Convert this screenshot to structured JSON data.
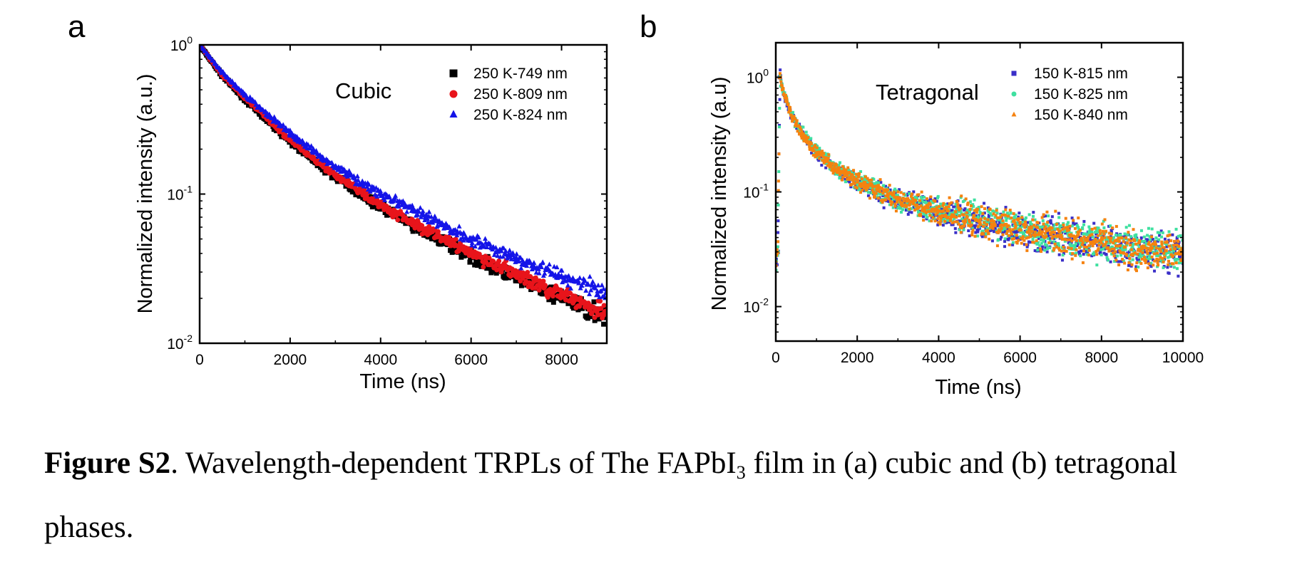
{
  "chart_data": [
    {
      "type": "scatter",
      "panel_label": "a",
      "annotation": "Cubic",
      "xlabel": "Time (ns)",
      "ylabel": "Normalized intensity (a.u.)",
      "xlim": [
        0,
        9000
      ],
      "ylim": [
        0.01,
        1
      ],
      "yscale": "log",
      "x_ticks": [
        0,
        2000,
        4000,
        6000,
        8000
      ],
      "y_ticks": [
        {
          "value": 0.01,
          "base": "10",
          "exp": "-2"
        },
        {
          "value": 0.1,
          "base": "10",
          "exp": "-1"
        },
        {
          "value": 1,
          "base": "10",
          "exp": "0"
        }
      ],
      "legend_position": "top-right",
      "series": [
        {
          "name": "250 K-749 nm",
          "marker": "square",
          "color": "#000000",
          "x": [
            0,
            500,
            1000,
            1500,
            2000,
            2500,
            3000,
            4000,
            5000,
            6000,
            7000,
            8000,
            9000
          ],
          "y": [
            1.0,
            0.62,
            0.43,
            0.31,
            0.225,
            0.17,
            0.13,
            0.082,
            0.055,
            0.038,
            0.027,
            0.02,
            0.015
          ]
        },
        {
          "name": "250 K-809 nm",
          "marker": "circle",
          "color": "#e8141b",
          "x": [
            0,
            500,
            1000,
            1500,
            2000,
            2500,
            3000,
            4000,
            5000,
            6000,
            7000,
            8000,
            9000
          ],
          "y": [
            1.0,
            0.63,
            0.44,
            0.32,
            0.232,
            0.175,
            0.134,
            0.085,
            0.058,
            0.04,
            0.029,
            0.021,
            0.016
          ]
        },
        {
          "name": "250 K-824 nm",
          "marker": "triangle",
          "color": "#1414e8",
          "x": [
            0,
            500,
            1000,
            1500,
            2000,
            2500,
            3000,
            4000,
            5000,
            6000,
            7000,
            8000,
            9000
          ],
          "y": [
            1.0,
            0.65,
            0.46,
            0.34,
            0.255,
            0.195,
            0.152,
            0.1,
            0.07,
            0.05,
            0.037,
            0.028,
            0.022
          ]
        }
      ]
    },
    {
      "type": "scatter",
      "panel_label": "b",
      "annotation": "Tetragonal",
      "xlabel": "Time (ns)",
      "ylabel": "Normalized intensity (a.u)",
      "xlim": [
        0,
        10000
      ],
      "ylim": [
        0.005,
        2
      ],
      "yscale": "log",
      "x_ticks": [
        0,
        2000,
        4000,
        6000,
        8000,
        10000
      ],
      "y_ticks": [
        {
          "value": 0.01,
          "base": "10",
          "exp": "-2"
        },
        {
          "value": 0.1,
          "base": "10",
          "exp": "-1"
        },
        {
          "value": 1,
          "base": "10",
          "exp": "0"
        }
      ],
      "legend_position": "top-right",
      "series": [
        {
          "name": "150 K-815 nm",
          "marker": "square",
          "color": "#3a2fc8",
          "x": [
            0,
            50,
            100,
            200,
            400,
            700,
            1000,
            1500,
            2000,
            3000,
            4000,
            5000,
            6000,
            7000,
            8000,
            9000,
            10000
          ],
          "y": [
            0.025,
            0.03,
            1.0,
            0.72,
            0.45,
            0.3,
            0.22,
            0.155,
            0.12,
            0.085,
            0.067,
            0.055,
            0.046,
            0.04,
            0.035,
            0.031,
            0.028
          ]
        },
        {
          "name": "150 K-825 nm",
          "marker": "circle",
          "color": "#3fe0a0",
          "x": [
            0,
            50,
            100,
            200,
            400,
            700,
            1000,
            1500,
            2000,
            3000,
            4000,
            5000,
            6000,
            7000,
            8000,
            9000,
            10000
          ],
          "y": [
            0.025,
            0.03,
            1.0,
            0.73,
            0.46,
            0.31,
            0.23,
            0.16,
            0.125,
            0.088,
            0.07,
            0.057,
            0.048,
            0.042,
            0.037,
            0.033,
            0.03
          ]
        },
        {
          "name": "150 K-840 nm",
          "marker": "triangle",
          "color": "#f5820f",
          "x": [
            0,
            50,
            100,
            200,
            400,
            700,
            1000,
            1500,
            2000,
            3000,
            4000,
            5000,
            6000,
            7000,
            8000,
            9000,
            10000
          ],
          "y": [
            0.025,
            0.03,
            1.0,
            0.72,
            0.45,
            0.3,
            0.22,
            0.157,
            0.122,
            0.086,
            0.068,
            0.056,
            0.047,
            0.041,
            0.036,
            0.032,
            0.029
          ]
        }
      ]
    }
  ],
  "caption": {
    "label": "Figure S2",
    "text_1": ". Wavelength-dependent TRPLs of The FAPbI",
    "subscript": "3",
    "text_2": " film in (a) cubic and (b) tetragonal phases."
  }
}
